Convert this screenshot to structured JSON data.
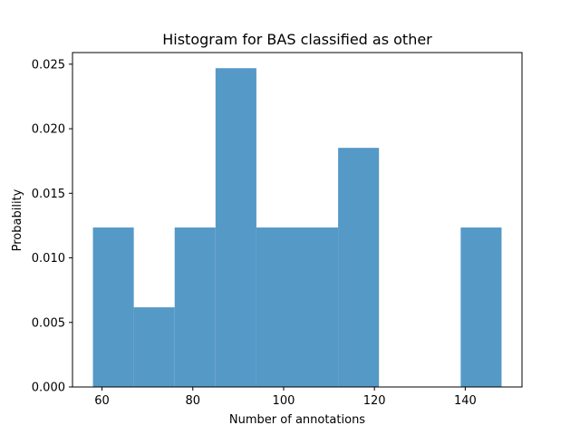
{
  "chart_data": {
    "type": "bar",
    "title": "Histogram for BAS classified as other",
    "xlabel": "Number of annotations",
    "ylabel": "Probability",
    "bins": [
      {
        "start": 58,
        "end": 67,
        "value": 0.01235
      },
      {
        "start": 67,
        "end": 76,
        "value": 0.00617
      },
      {
        "start": 76,
        "end": 85,
        "value": 0.01235
      },
      {
        "start": 85,
        "end": 94,
        "value": 0.02469
      },
      {
        "start": 94,
        "end": 103,
        "value": 0.01235
      },
      {
        "start": 103,
        "end": 112,
        "value": 0.01235
      },
      {
        "start": 112,
        "end": 121,
        "value": 0.01852
      },
      {
        "start": 121,
        "end": 130,
        "value": 0
      },
      {
        "start": 130,
        "end": 139,
        "value": 0
      },
      {
        "start": 139,
        "end": 148,
        "value": 0.01235
      }
    ],
    "xlim": [
      53.5,
      152.5
    ],
    "ylim": [
      0,
      0.0259
    ],
    "xticks": [
      60,
      80,
      100,
      120,
      140
    ],
    "xtick_labels": [
      "60",
      "80",
      "100",
      "120",
      "140"
    ],
    "yticks": [
      0,
      0.005,
      0.01,
      0.015,
      0.02,
      0.025
    ],
    "ytick_labels": [
      "0.000",
      "0.005",
      "0.010",
      "0.015",
      "0.020",
      "0.025"
    ],
    "bar_color": "#5599c7",
    "grid": false
  }
}
